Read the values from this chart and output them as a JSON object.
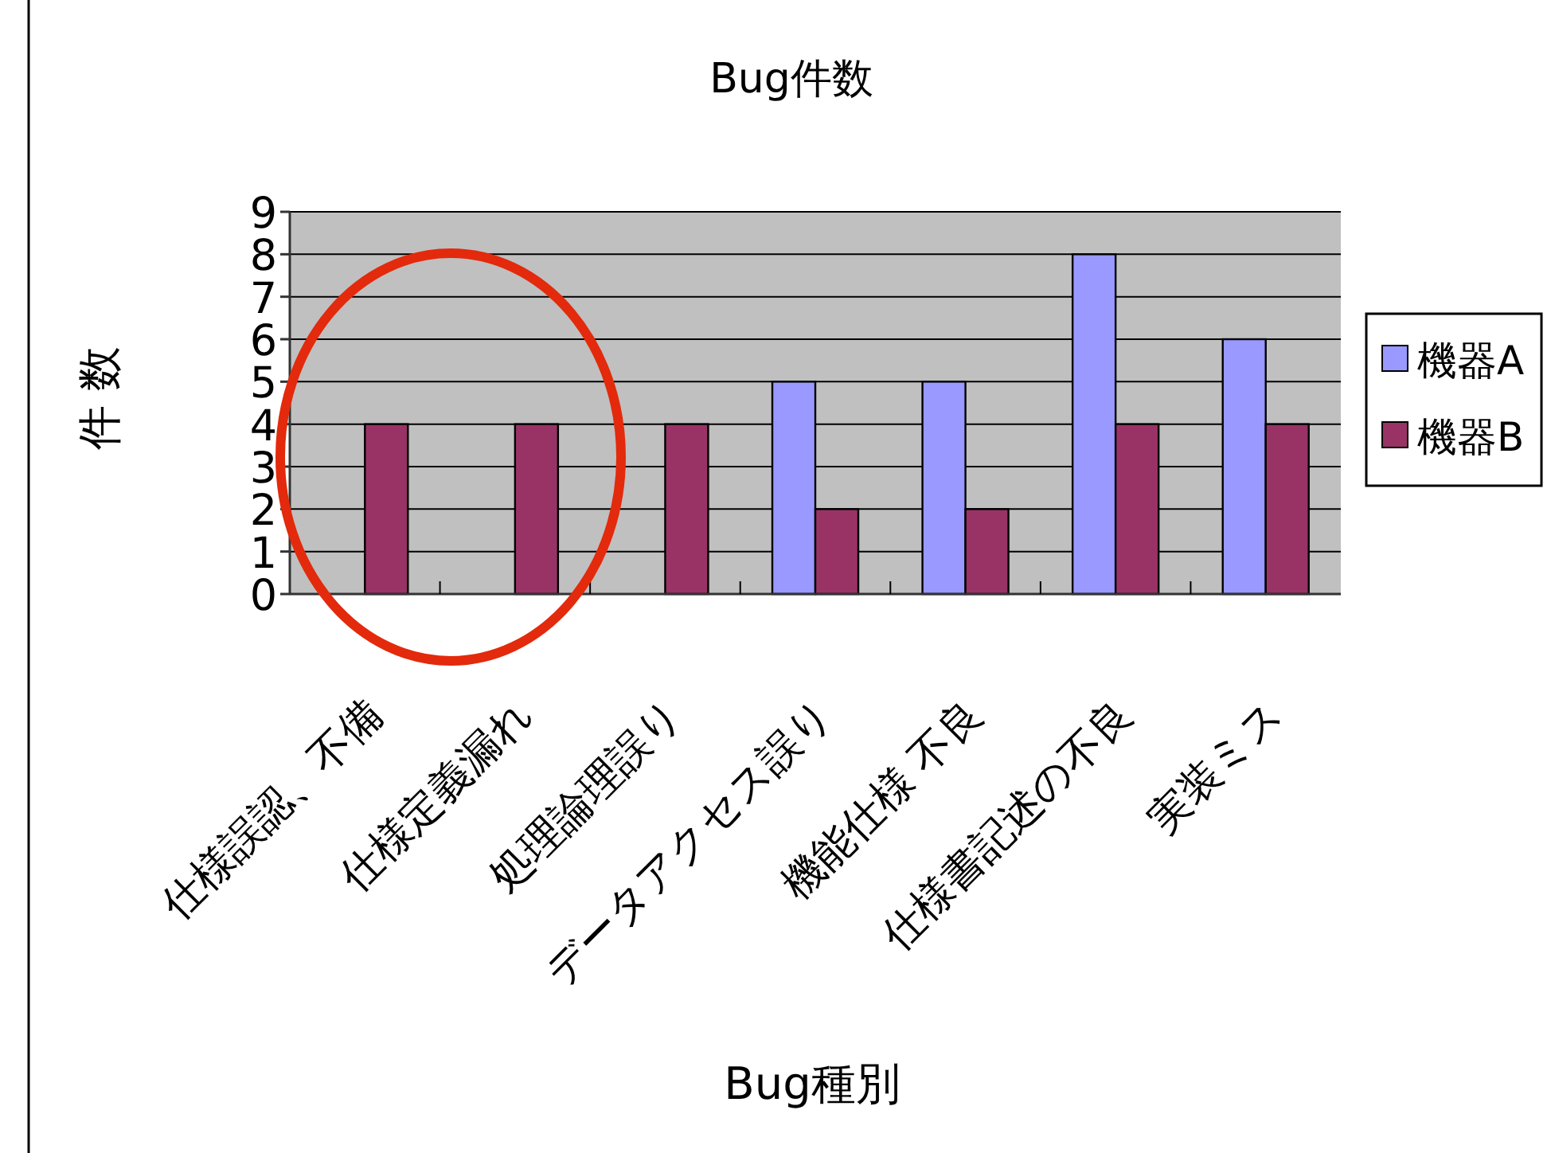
{
  "chart_data": {
    "type": "bar",
    "title": "Bug件数",
    "xlabel": "Bug種別",
    "ylabel": "件 数",
    "categories": [
      "仕様誤認、不備",
      "仕様定義漏れ",
      "処理論理誤り",
      "データアクセス誤り",
      "機能仕様 不良",
      "仕様書記述の不良",
      "実装ミス"
    ],
    "series": [
      {
        "name": "機器A",
        "color": "#9999ff",
        "values": [
          0,
          0,
          0,
          5,
          5,
          8,
          6
        ]
      },
      {
        "name": "機器B",
        "color": "#993366",
        "values": [
          4,
          4,
          4,
          2,
          2,
          4,
          4
        ]
      }
    ],
    "ylim": [
      0,
      9
    ],
    "yticks": [
      0,
      1,
      2,
      3,
      4,
      5,
      6,
      7,
      8,
      9
    ],
    "grid": "y",
    "legend": "right"
  }
}
